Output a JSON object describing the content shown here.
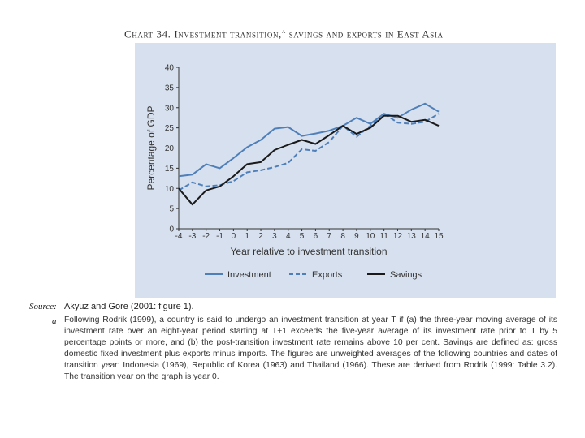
{
  "page": {
    "title": "Chart 34. Investment transition,",
    "title_sup": "a",
    "title_rest": " savings and exports in East Asia",
    "source_label": "Source:",
    "source_text": "Akyuz and Gore (2001: figure 1).",
    "note_mark": "a",
    "note_text": "Following Rodrik (1999), a country is said to undergo an investment transition at year T if (a) the three-year moving average of its investment rate over an eight-year period starting at T+1 exceeds the five-year average of its investment rate prior to T by 5 percentage points or more, and (b) the post-transition investment rate remains above 10 per cent. Savings are defined as: gross domestic fixed investment plus exports minus imports. The figures are unweighted averages of the following countries and dates of transition year: Indonesia (1969), Republic of Korea (1963) and Thailand (1966). These are derived from Rodrik (1999: Table 3.2). The transition year on the graph is year 0."
  },
  "colors": {
    "investment": "#4f7fb9",
    "exports": "#4f7fb9",
    "savings": "#1a1a1a",
    "panel": "#d7e0ee"
  },
  "chart_data": {
    "type": "line",
    "title": "Chart 34. Investment transition, savings and exports in East Asia",
    "xlabel": "Year relative to investment transition",
    "ylabel": "Percentage of GDP",
    "xlim": [
      -4,
      15
    ],
    "ylim": [
      0,
      40
    ],
    "x": [
      -4,
      -3,
      -2,
      -1,
      0,
      1,
      2,
      3,
      4,
      5,
      6,
      7,
      8,
      9,
      10,
      11,
      12,
      13,
      14,
      15
    ],
    "x_tick_labels": [
      "-4",
      "-3",
      "-2",
      "-1",
      "0",
      "1",
      "2",
      "3",
      "4",
      "5",
      "6",
      "7",
      "8",
      "9",
      "10",
      "11",
      "12",
      "13",
      "14",
      "15"
    ],
    "y_ticks": [
      0,
      5,
      10,
      15,
      20,
      25,
      30,
      35,
      40
    ],
    "y_tick_labels": [
      "0",
      "5",
      "10",
      "15",
      "20",
      "25",
      "30",
      "35",
      "40"
    ],
    "legend": {
      "position": "bottom"
    },
    "series": [
      {
        "name": "Investment",
        "style": "solid",
        "values": [
          13,
          13.4,
          16,
          15,
          17.5,
          20.2,
          22,
          24.8,
          25.2,
          23,
          23.6,
          24.3,
          25.5,
          27.5,
          26,
          28.5,
          27.5,
          29.5,
          31,
          29
        ]
      },
      {
        "name": "Exports",
        "style": "dashed",
        "values": [
          9.5,
          11.5,
          10.5,
          10.8,
          11.8,
          14,
          14.5,
          15.3,
          16.3,
          19.7,
          19.3,
          21.5,
          25.5,
          22.8,
          25.5,
          28.5,
          26.3,
          26,
          26.5,
          28.5
        ]
      },
      {
        "name": "Savings",
        "style": "solid",
        "values": [
          10,
          6,
          9.5,
          10.5,
          13,
          16,
          16.5,
          19.5,
          20.8,
          22,
          21,
          23.2,
          25.5,
          23.5,
          25,
          28,
          28,
          26.5,
          27,
          25.5
        ]
      }
    ]
  }
}
